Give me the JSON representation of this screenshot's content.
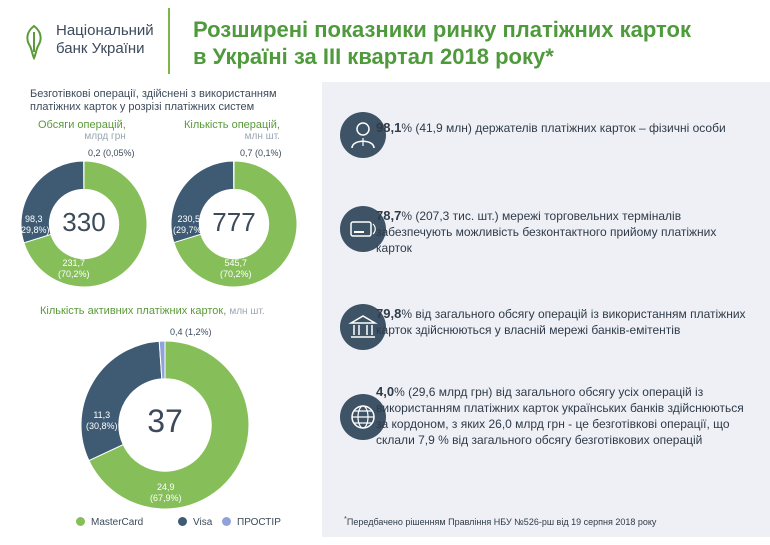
{
  "header": {
    "logo_line1": "Національний",
    "logo_line2": "банк України",
    "title_line1": "Розширені показники ринку платіжних карток",
    "title_line2": "в Україні за ІІІ квартал 2018 року*"
  },
  "subtitle_line1": "Безготівкові операції, здійснені з використанням",
  "subtitle_line2": "платіжних карток у розрізі платіжних систем",
  "colors": {
    "mastercard": "#86bf5a",
    "visa": "#3e5b73",
    "prostir": "#8fa3d9"
  },
  "chart_data": [
    {
      "type": "pie",
      "title": "Обсяги операцій,",
      "unit": "млрд грн",
      "total": "330",
      "categories": [
        "MasterCard",
        "Visa",
        "ПРОСТІР"
      ],
      "values": [
        231.7,
        98.3,
        0.2
      ],
      "labels": [
        "231,7",
        "98,3",
        "0,2 (0,05%)"
      ],
      "percent_labels": [
        "(70,2%)",
        "(29,8%)",
        ""
      ]
    },
    {
      "type": "pie",
      "title": "Кількість операцій,",
      "unit": "млн шт.",
      "total": "777",
      "categories": [
        "MasterCard",
        "Visa",
        "ПРОСТІР"
      ],
      "values": [
        545.7,
        230.5,
        0.7
      ],
      "labels": [
        "545,7",
        "230,5",
        "0,7 (0,1%)"
      ],
      "percent_labels": [
        "(70,2%)",
        "(29,7%)",
        ""
      ]
    },
    {
      "type": "pie",
      "title": "Кількість активних платіжних карток,",
      "unit": "млн шт.",
      "total": "37",
      "categories": [
        "MasterCard",
        "Visa",
        "ПРОСТІР"
      ],
      "values": [
        24.9,
        11.3,
        0.4
      ],
      "labels": [
        "24,9",
        "11,3",
        "0,4 (1,2%)"
      ],
      "percent_labels": [
        "(67,9%)",
        "(30,8%)",
        ""
      ]
    }
  ],
  "legend": [
    "MasterCard",
    "Visa",
    "ПРОСТІР"
  ],
  "facts": [
    {
      "icon": "person-icon",
      "bold": "98,1",
      "text": "% (41,9 млн) держателів платіжних карток – фізичні особи"
    },
    {
      "icon": "card-terminal-icon",
      "bold": "78,7",
      "text": "% (207,3 тис. шт.) мережі торговельних терміналів забезпечують можливість безконтактного прийому платіжних карток"
    },
    {
      "icon": "bank-icon",
      "bold": "79,8",
      "text": "% від загального обсягу операцій із використанням платіжних карток здійснюються у власній мережі банків-емітентів"
    },
    {
      "icon": "globe-icon",
      "bold": "4,0",
      "text": "% (29,6 млрд грн) від загального обсягу усіх операцій із використанням платіжних карток українських банків здійснюються за кордоном, з яких 26,0 млрд грн - це безготівкові операції, що склали 7,9 % від загального обсягу безготівкових операцій"
    }
  ],
  "footnote_mark": "*",
  "footnote": "Передбачено рішенням Правління НБУ №526-рш від 19 серпня 2018 року"
}
